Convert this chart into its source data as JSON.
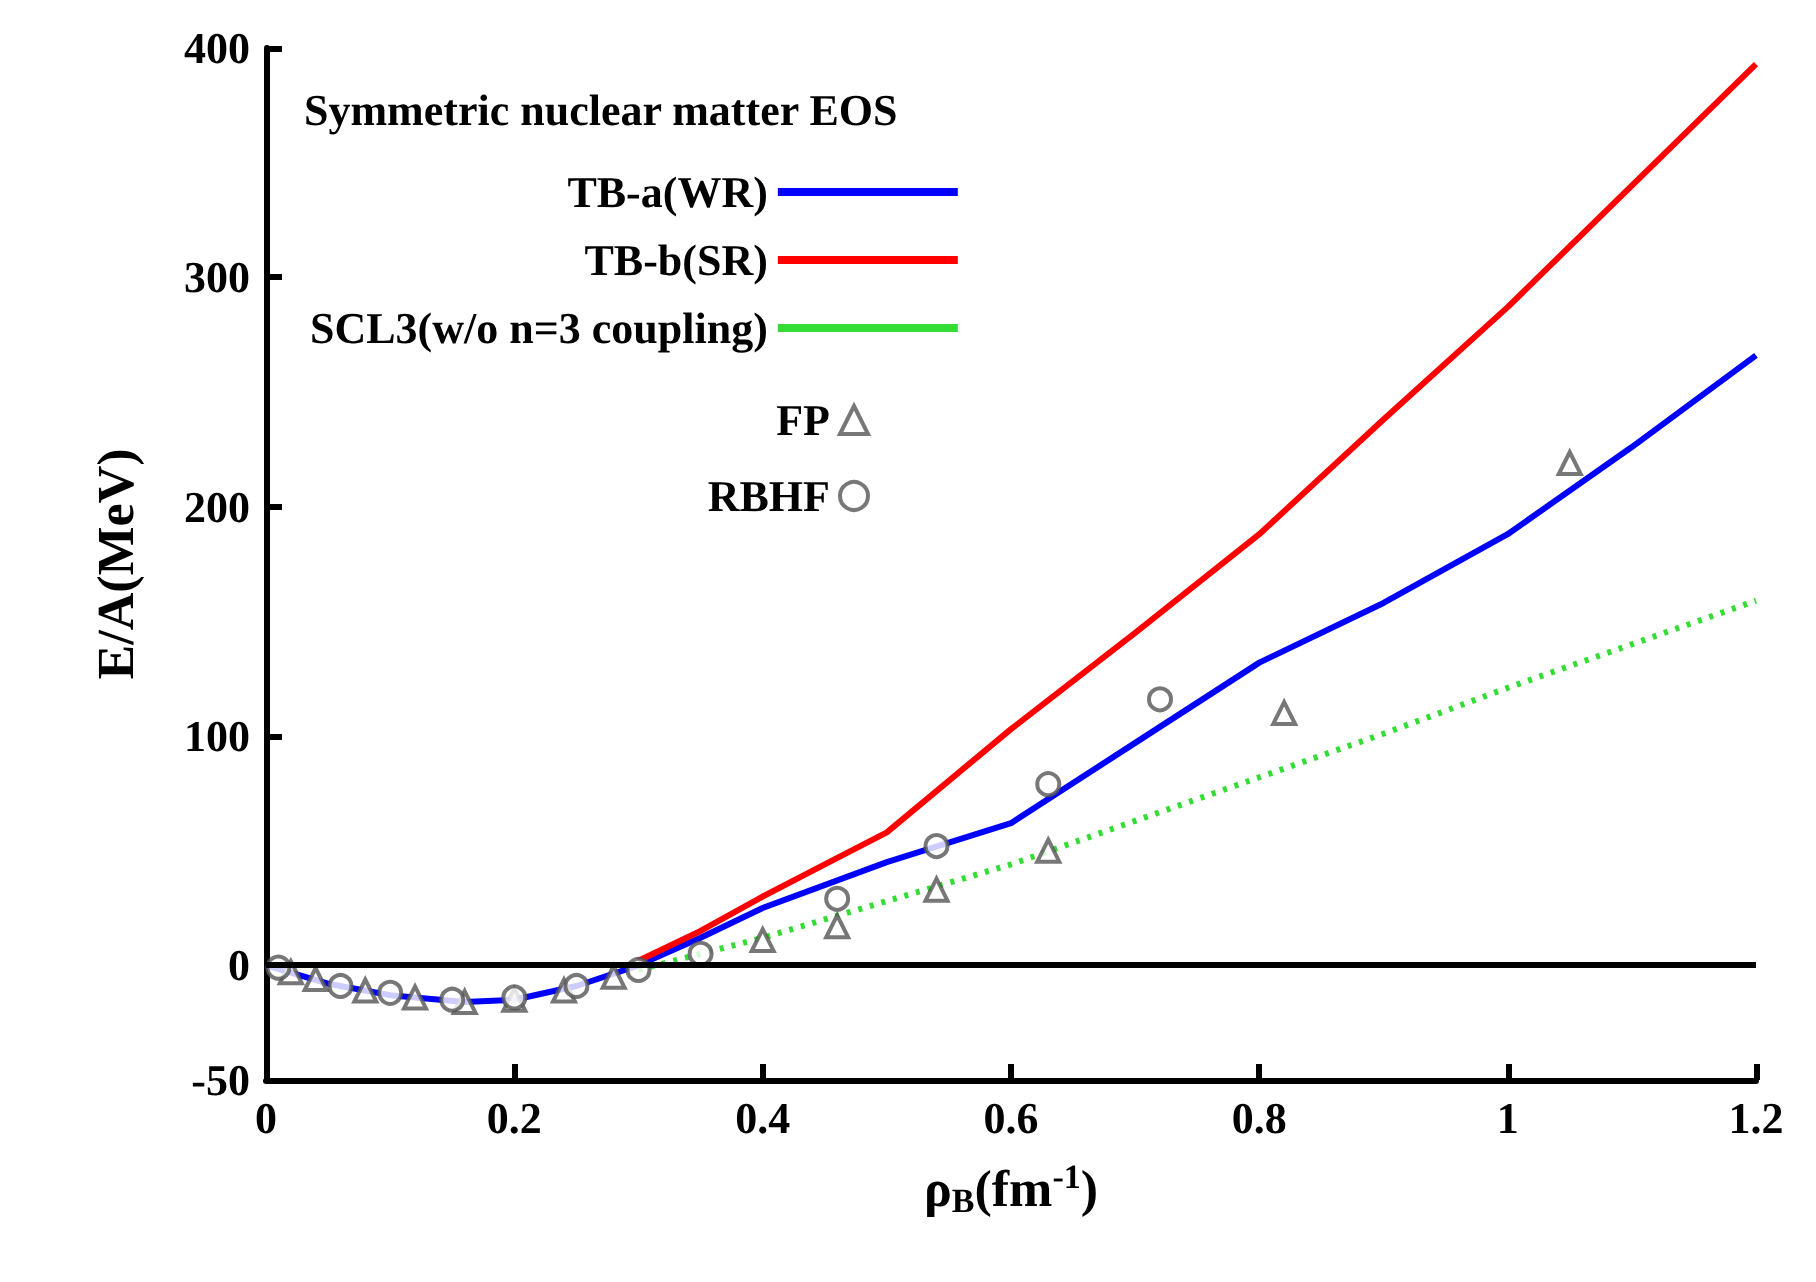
{
  "chart_data": {
    "type": "line",
    "xlabel": "ρ$_{B}$(fm$^{-1}$)",
    "ylabel": "E/A(MeV)",
    "legend_title": "Symmetric nuclear matter EOS",
    "xlim": [
      0,
      1.2
    ],
    "xticks": [
      0,
      0.2,
      0.4,
      0.6,
      0.8,
      1,
      1.2
    ],
    "ylim": [
      -50,
      400
    ],
    "yticks": [
      -50,
      0,
      100,
      200,
      300,
      400
    ],
    "grid": false,
    "legend": "top left",
    "ref_lines": [
      {
        "axis": "y",
        "value": 0,
        "color": "#000000"
      }
    ],
    "series": [
      {
        "name": "TB-a(WR)",
        "color": "#0000ff",
        "line_style": "solid",
        "marker": "none",
        "x": [
          0,
          0.05,
          0.1,
          0.16,
          0.2,
          0.25,
          0.3,
          0.35,
          0.4,
          0.5,
          0.6,
          0.7,
          0.8,
          0.9,
          1,
          1.1,
          1.2
        ],
        "values": [
          0,
          -8,
          -13,
          -16,
          -15,
          -9,
          0,
          12,
          25,
          45,
          62,
          97,
          132,
          158,
          188,
          226,
          266
        ]
      },
      {
        "name": "TB-b(SR)",
        "color": "#ff0000",
        "line_style": "solid",
        "marker": "none",
        "x": [
          0.3,
          0.35,
          0.4,
          0.45,
          0.5,
          0.6,
          0.7,
          0.8,
          0.9,
          1,
          1.1,
          1.2
        ],
        "values": [
          2,
          15,
          30,
          44,
          58,
          103,
          145,
          188,
          238,
          287,
          340,
          393
        ]
      },
      {
        "name": "SCL3(w/o n=3 coupling)",
        "color": "#33dd33",
        "line_style": "dotted",
        "marker": "none",
        "x": [
          0.3,
          0.35,
          0.4,
          0.5,
          0.6,
          0.7,
          0.8,
          0.9,
          1,
          1.1,
          1.2
        ],
        "values": [
          -2,
          5,
          12,
          28,
          44,
          63,
          82,
          101,
          121,
          140,
          159
        ]
      },
      {
        "name": "FP",
        "type": "scatter",
        "color": "#555555",
        "marker": "triangle",
        "x": [
          0.02,
          0.04,
          0.08,
          0.12,
          0.16,
          0.2,
          0.24,
          0.28,
          0.32,
          0.36,
          0.4,
          0.46,
          0.54,
          0.63,
          0.82,
          1.05
        ],
        "values": [
          -3,
          -6,
          -11,
          -14,
          -16,
          -15,
          -11,
          -5,
          null,
          null,
          11,
          17,
          33,
          50,
          110,
          219
        ]
      },
      {
        "name": "RBHF",
        "type": "scatter",
        "color": "#555555",
        "marker": "circle",
        "x": [
          0.01,
          0.06,
          0.1,
          0.15,
          0.2,
          0.25,
          0.3,
          0.35,
          0.46,
          0.54,
          0.63,
          0.72
        ],
        "values": [
          -1,
          -9,
          -12,
          -15,
          -14,
          -9,
          -2,
          5,
          29,
          52,
          79,
          116
        ]
      }
    ]
  }
}
